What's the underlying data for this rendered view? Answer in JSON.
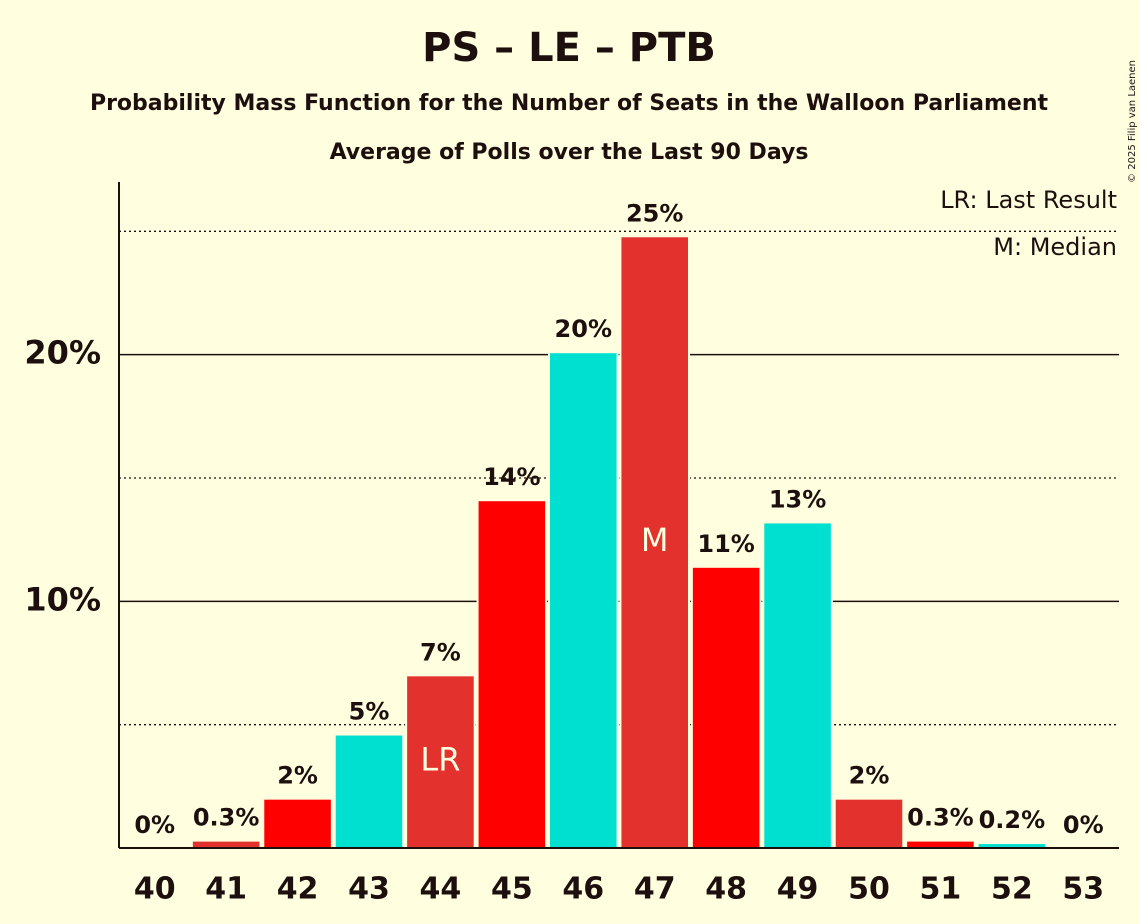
{
  "chart_data": {
    "type": "bar",
    "title": "PS – LE – PTB",
    "subtitle": "Probability Mass Function for the Number of Seats in the Walloon Parliament",
    "subtitle2": "Average of Polls over the Last 90 Days",
    "categories": [
      "40",
      "41",
      "42",
      "43",
      "44",
      "45",
      "46",
      "47",
      "48",
      "49",
      "50",
      "51",
      "52",
      "53"
    ],
    "values": [
      0,
      0.3,
      2.0,
      4.6,
      7.0,
      14.1,
      20.1,
      24.8,
      11.4,
      13.2,
      2.0,
      0.3,
      0.2,
      0
    ],
    "value_labels": [
      "0%",
      "0.3%",
      "2%",
      "5%",
      "7%",
      "14%",
      "20%",
      "25%",
      "11%",
      "13%",
      "2%",
      "0.3%",
      "0.2%",
      "0%"
    ],
    "colors": [
      "#e3312d",
      "#e3312d",
      "#ff0000",
      "#00e0d0",
      "#e3312d",
      "#ff0000",
      "#00e0d0",
      "#e3312d",
      "#ff0000",
      "#00e0d0",
      "#e3312d",
      "#ff0000",
      "#00e0d0",
      "#e3312d"
    ],
    "ylim": [
      0,
      27
    ],
    "yticks": [
      {
        "value": 10,
        "label": "10%"
      },
      {
        "value": 20,
        "label": "20%"
      }
    ],
    "minor_yticks": [
      5,
      15,
      25
    ],
    "grid": true,
    "markers": [
      {
        "category": "44",
        "label": "LR"
      },
      {
        "category": "47",
        "label": "M"
      }
    ],
    "legend": [
      "LR: Last Result",
      "M: Median"
    ],
    "copyright": "© 2025 Filip van Laenen"
  }
}
